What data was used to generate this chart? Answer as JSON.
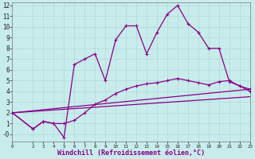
{
  "xlabel": "Windchill (Refroidissement éolien,°C)",
  "bg_color": "#c8ecec",
  "grid_color": "#b0d8d8",
  "line_color": "#880088",
  "xlim": [
    0,
    23
  ],
  "ylim": [
    -0.7,
    12.3
  ],
  "xticks": [
    0,
    2,
    3,
    4,
    5,
    6,
    7,
    8,
    9,
    10,
    11,
    12,
    13,
    14,
    15,
    16,
    17,
    18,
    19,
    20,
    21,
    22,
    23
  ],
  "yticks": [
    0,
    1,
    2,
    3,
    4,
    5,
    6,
    7,
    8,
    9,
    10,
    11,
    12
  ],
  "ytick_labels": [
    "-0",
    "1",
    "2",
    "3",
    "4",
    "5",
    "6",
    "7",
    "8",
    "9",
    "10",
    "11",
    "12"
  ],
  "line1_x": [
    0,
    2,
    3,
    4,
    5,
    6,
    7,
    8,
    9,
    10,
    11,
    12,
    13,
    14,
    15,
    16,
    17,
    18,
    19,
    20,
    21,
    22,
    23
  ],
  "line1_y": [
    2.0,
    0.5,
    1.2,
    1.0,
    -0.3,
    6.5,
    7.0,
    7.5,
    5.0,
    8.8,
    10.1,
    10.1,
    7.5,
    9.5,
    11.2,
    12.0,
    10.3,
    9.5,
    8.0,
    8.0,
    4.9,
    4.5,
    4.0
  ],
  "line2_x": [
    0,
    2,
    3,
    4,
    5,
    6,
    7,
    8,
    9,
    10,
    11,
    12,
    13,
    14,
    15,
    16,
    17,
    18,
    19,
    20,
    21,
    22,
    23
  ],
  "line2_y": [
    2.0,
    0.5,
    1.2,
    1.0,
    1.0,
    1.3,
    2.0,
    2.8,
    3.2,
    3.8,
    4.2,
    4.5,
    4.7,
    4.8,
    5.0,
    5.2,
    5.0,
    4.8,
    4.6,
    4.9,
    5.0,
    4.5,
    4.2
  ],
  "line3_x": [
    0,
    23
  ],
  "line3_y": [
    2.0,
    4.2
  ],
  "line4_x": [
    0,
    23
  ],
  "line4_y": [
    2.0,
    3.5
  ]
}
